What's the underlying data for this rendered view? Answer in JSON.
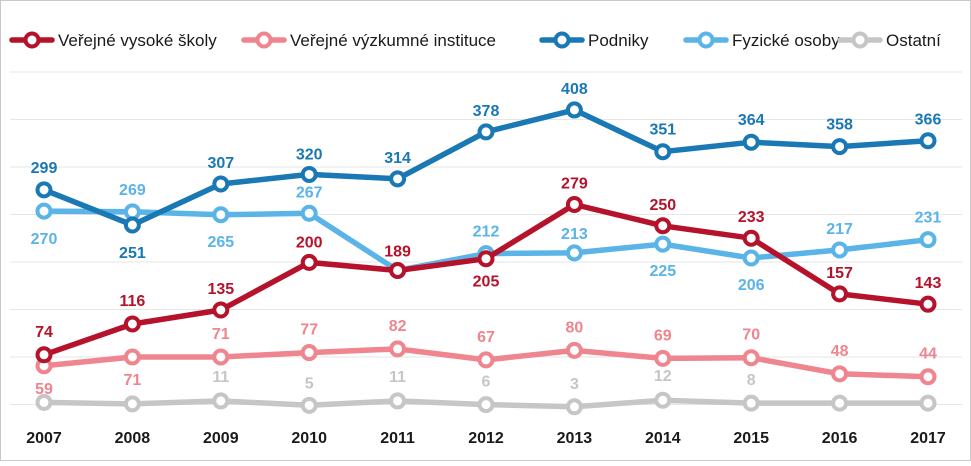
{
  "chart_data": {
    "type": "line",
    "title": "",
    "xlabel": "",
    "ylabel": "",
    "ylim": [
      0,
      430
    ],
    "grid": "horizontal",
    "legend_position": "top",
    "categories": [
      "2007",
      "2008",
      "2009",
      "2010",
      "2011",
      "2012",
      "2013",
      "2014",
      "2015",
      "2016",
      "2017"
    ],
    "series": [
      {
        "name": "Veřejné vysoké školy",
        "color": "#b5132b",
        "values": [
          74,
          116,
          135,
          200,
          189,
          205,
          279,
          250,
          233,
          157,
          143
        ],
        "labels": [
          "74",
          "116",
          "135",
          "200",
          "189",
          "205",
          "279",
          "250",
          "233",
          "157",
          "143"
        ]
      },
      {
        "name": "Veřejné výzkumné instituce",
        "color": "#ee858f",
        "values": [
          59,
          71,
          71,
          77,
          82,
          67,
          80,
          69,
          70,
          48,
          44
        ],
        "labels": [
          "59",
          "71",
          "71",
          "77",
          "82",
          "67",
          "80",
          "69",
          "70",
          "48",
          "44"
        ]
      },
      {
        "name": "Podniky",
        "color": "#1a78b4",
        "values": [
          299,
          251,
          307,
          320,
          314,
          378,
          408,
          351,
          364,
          358,
          366
        ],
        "labels": [
          "299",
          "251",
          "307",
          "320",
          "314",
          "378",
          "408",
          "351",
          "364",
          "358",
          "366"
        ]
      },
      {
        "name": "Fyzické osoby",
        "color": "#5ab4e8",
        "values": [
          270,
          269,
          265,
          267,
          189,
          212,
          213,
          225,
          206,
          217,
          231
        ],
        "labels": [
          "270",
          "269",
          "265",
          "267",
          "",
          "212",
          "213",
          "225",
          "206",
          "217",
          "231"
        ]
      },
      {
        "name": "Ostatní",
        "color": "#c6c6c6",
        "values": [
          9,
          7,
          11,
          5,
          11,
          6,
          3,
          12,
          8,
          8,
          8
        ],
        "labels": [
          "",
          "",
          "11",
          "5",
          "11",
          "6",
          "3",
          "12",
          "8",
          "",
          ""
        ]
      }
    ]
  }
}
